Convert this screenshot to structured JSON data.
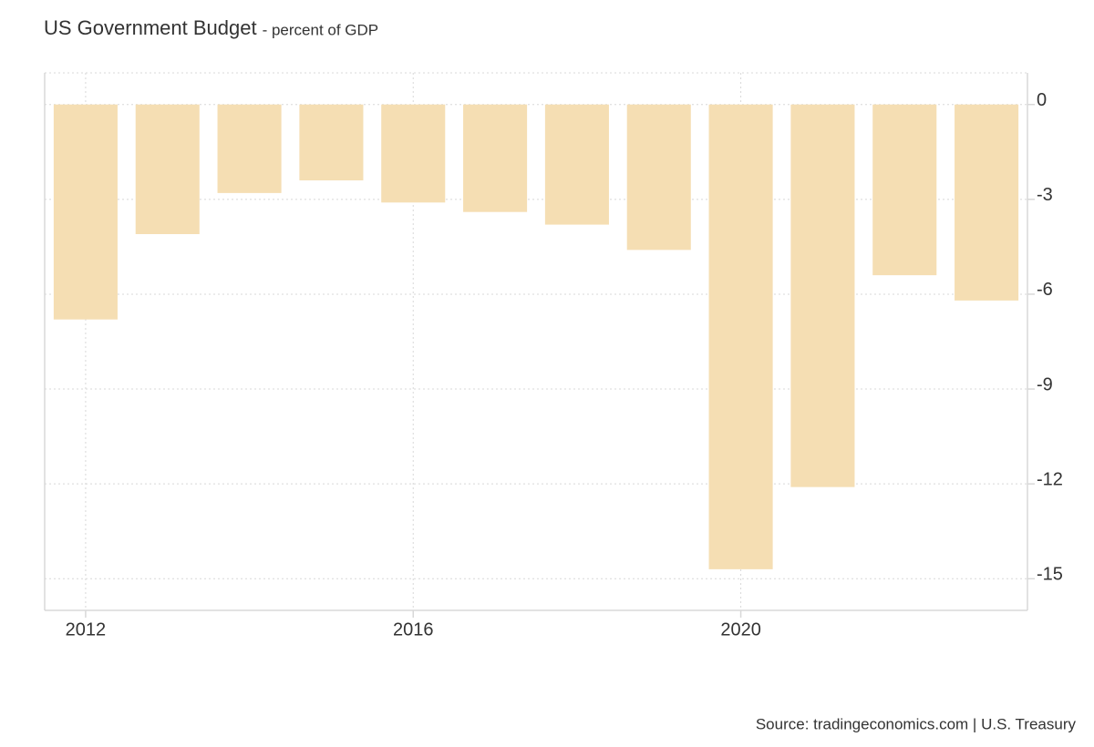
{
  "chart_data": {
    "type": "bar",
    "title": "US Government Budget",
    "subtitle": "- percent of GDP",
    "source": "Source: tradingeconomics.com | U.S. Treasury",
    "x": [
      2012,
      2013,
      2014,
      2015,
      2016,
      2017,
      2018,
      2019,
      2020,
      2021,
      2022,
      2023
    ],
    "values": [
      -6.8,
      -4.1,
      -2.8,
      -2.4,
      -3.1,
      -3.4,
      -3.8,
      -4.6,
      -14.7,
      -12.1,
      -5.4,
      -6.2
    ],
    "color": "#f5deb3",
    "xlim": [
      2011.5,
      2023.5
    ],
    "xticks": [
      2012,
      2016,
      2020
    ],
    "ylim": [
      -16,
      1
    ],
    "yticks": [
      0,
      -3,
      -6,
      -9,
      -12,
      -15
    ],
    "grid": true
  }
}
